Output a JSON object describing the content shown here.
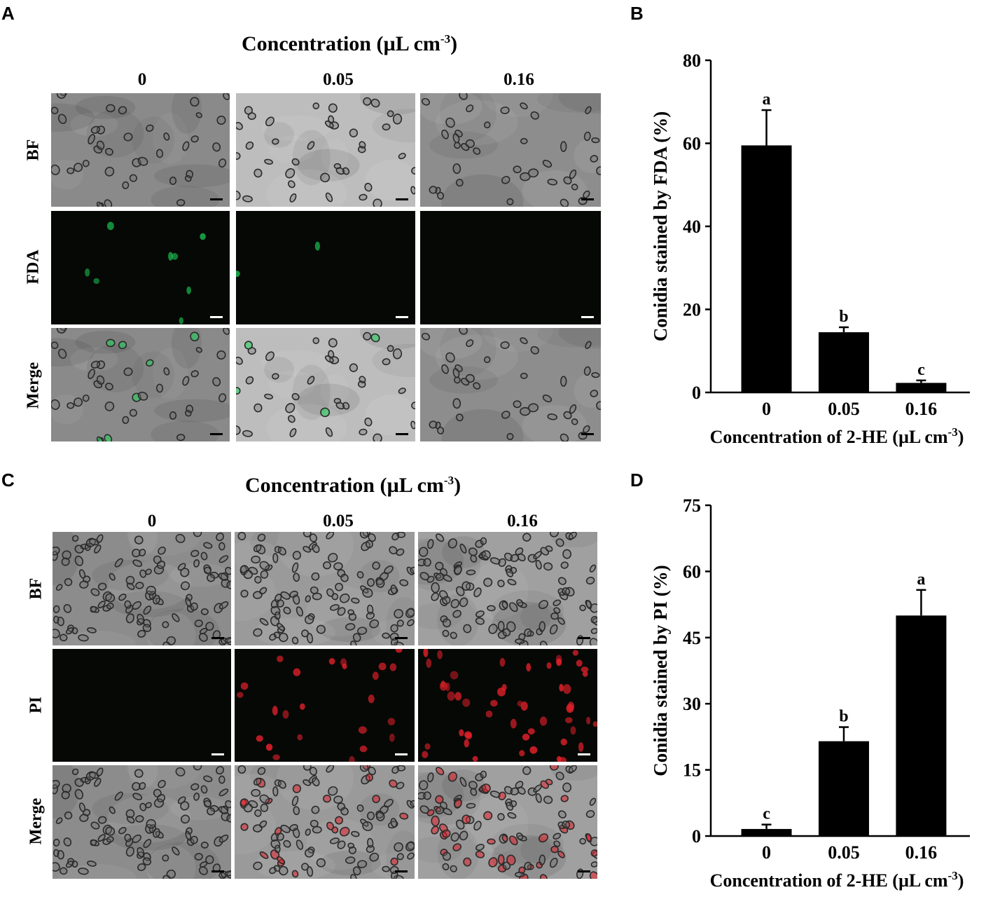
{
  "panels": {
    "A": {
      "letter": "A",
      "title_main": "Concentration (µL cm",
      "title_sup": "-3",
      "title_end": ")",
      "columns": [
        "0",
        "0.05",
        "0.16"
      ],
      "rows": [
        "BF",
        "FDA",
        "Merge"
      ]
    },
    "B": {
      "letter": "B"
    },
    "C": {
      "letter": "C",
      "title_main": "Concentration (µL cm",
      "title_sup": "-3",
      "title_end": ")",
      "columns": [
        "0",
        "0.05",
        "0.16"
      ],
      "rows": [
        "BF",
        "PI",
        "Merge"
      ]
    },
    "D": {
      "letter": "D"
    }
  },
  "colors": {
    "bf_gray": "#8f8f8f",
    "fda_green": "#1fd65a",
    "pi_red": "#e0202a",
    "dark_bg": "#050805",
    "bar": "#000000"
  },
  "chart_data": [
    {
      "type": "bar",
      "panel": "B",
      "categories": [
        "0",
        "0.05",
        "0.16"
      ],
      "values": [
        59.5,
        14.5,
        2.3
      ],
      "errors": [
        8.5,
        1.2,
        0.6
      ],
      "significance": [
        "a",
        "b",
        "c"
      ],
      "xlabel": "Concentration of 2-HE (µL cm",
      "xlabel_sup": "-3",
      "xlabel_end": ")",
      "ylabel": "Conidia stained by FDA (%)",
      "ylim": [
        0,
        80
      ],
      "yticks": [
        "0",
        "20",
        "40",
        "60",
        "80"
      ],
      "grid": false
    },
    {
      "type": "bar",
      "panel": "D",
      "categories": [
        "0",
        "0.05",
        "0.16"
      ],
      "values": [
        1.6,
        21.5,
        50
      ],
      "errors": [
        1.0,
        3.2,
        5.8
      ],
      "significance": [
        "c",
        "b",
        "a"
      ],
      "xlabel": "Concentration of 2-HE (µL cm",
      "xlabel_sup": "-3",
      "xlabel_end": ")",
      "ylabel": "Conidia stained by PI (%)",
      "ylim": [
        0,
        75
      ],
      "yticks": [
        "0",
        "15",
        "30",
        "45",
        "60",
        "75"
      ],
      "grid": false
    }
  ]
}
